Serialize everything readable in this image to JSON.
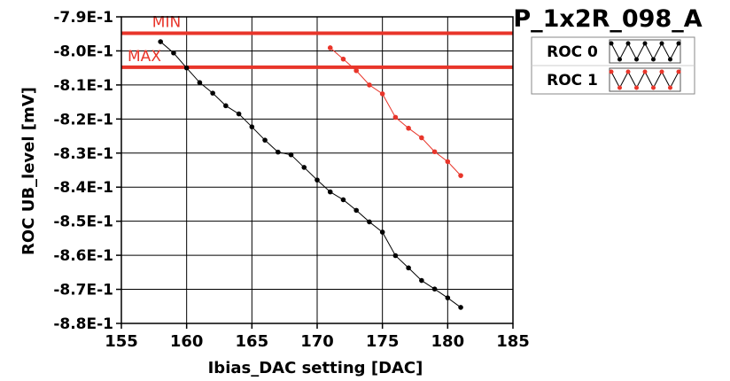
{
  "chart_data": {
    "type": "line",
    "title": "P_1x2R_098_A",
    "xlabel": "Ibias_DAC setting [DAC]",
    "ylabel": "ROC UB_level [mV]",
    "xlim": [
      155,
      185
    ],
    "ylim": [
      -0.88,
      -0.79
    ],
    "x_ticks": [
      155,
      160,
      165,
      170,
      175,
      180,
      185
    ],
    "x_tick_labels": [
      "155",
      "160",
      "165",
      "170",
      "175",
      "180",
      "185"
    ],
    "y_ticks": [
      -0.79,
      -0.8,
      -0.81,
      -0.82,
      -0.83,
      -0.84,
      -0.85,
      -0.86,
      -0.87,
      -0.88
    ],
    "y_tick_labels": [
      "-7.9E-1",
      "-8.0E-1",
      "-8.1E-1",
      "-8.2E-1",
      "-8.3E-1",
      "-8.4E-1",
      "-8.5E-1",
      "-8.6E-1",
      "-8.7E-1",
      "-8.8E-1"
    ],
    "grid": true,
    "legend_position": "top-right",
    "limit_color": "#e8352a",
    "limits": [
      {
        "label": "MIN",
        "y": -0.7948
      },
      {
        "label": "MAX",
        "y": -0.8048
      }
    ],
    "series": [
      {
        "name": "ROC 0",
        "color": "#000000",
        "x": [
          158,
          159,
          160,
          161,
          162,
          163,
          164,
          165,
          166,
          167,
          168,
          169,
          170,
          171,
          172,
          173,
          174,
          175,
          176,
          177,
          178,
          179,
          180,
          181
        ],
        "y": [
          -0.7973,
          -0.8006,
          -0.805,
          -0.8093,
          -0.8124,
          -0.8161,
          -0.8185,
          -0.8223,
          -0.8262,
          -0.8297,
          -0.8305,
          -0.8342,
          -0.8379,
          -0.8414,
          -0.8437,
          -0.8468,
          -0.8502,
          -0.8532,
          -0.8601,
          -0.8637,
          -0.8674,
          -0.8699,
          -0.8725,
          -0.8753
        ]
      },
      {
        "name": "ROC 1",
        "color": "#e8352a",
        "x": [
          171,
          172,
          173,
          174,
          175,
          176,
          177,
          178,
          179,
          180,
          181
        ],
        "y": [
          -0.7991,
          -0.8024,
          -0.8058,
          -0.81,
          -0.8126,
          -0.8195,
          -0.8227,
          -0.8255,
          -0.8296,
          -0.8325,
          -0.8366
        ]
      }
    ]
  }
}
